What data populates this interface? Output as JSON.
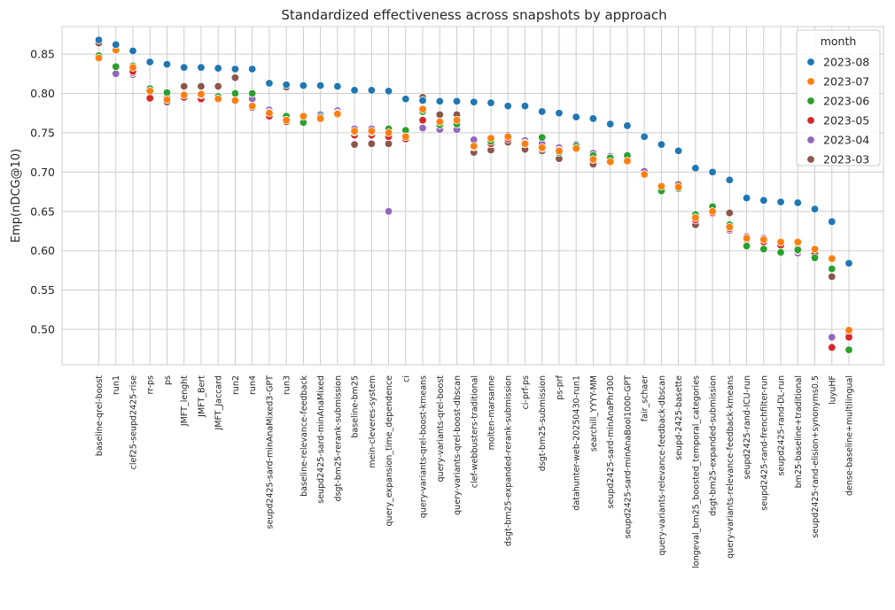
{
  "chart_data": {
    "type": "scatter",
    "title": "Standardized effectiveness across snapshots by approach",
    "xlabel": "",
    "ylabel": "Emp(nDCG@10)",
    "ylim": [
      0.455,
      0.885
    ],
    "yticks": [
      0.5,
      0.55,
      0.6,
      0.65,
      0.7,
      0.75,
      0.8,
      0.85
    ],
    "ytick_labels": [
      "0.50",
      "0.55",
      "0.60",
      "0.65",
      "0.70",
      "0.75",
      "0.80",
      "0.85"
    ],
    "grid": true,
    "legend": {
      "title": "month",
      "position": "top-right"
    },
    "categories": [
      "baseline-qrel-boost",
      "run1",
      "clef25-seupd2425-rise",
      "rr-ps",
      "ps",
      "JMFT_lenght",
      "JMFT_Bert",
      "JMFT_Jaccard",
      "run2",
      "run4",
      "seupd2425-sard-minAnaMixed3-GPT",
      "run3",
      "baseline-relevance-feedback",
      "seupd2425-sard-minAnaMixed",
      "dsgt-bm25-rerank-submission",
      "baseline-bm25",
      "mein-cleveres-system",
      "query_expansion_time_dependence",
      "ci",
      "query-variants-qrel-boost-kmeans",
      "query-variants-qrel-boost",
      "query-variants-qrel-boost-dbscan",
      "clef-webbusters-traditional",
      "molten-marsanne",
      "dsgt-bm25-expanded-rerank-submission",
      "ci-prf-ps",
      "dsgt-bm25-submission",
      "ps-prf",
      "datahunter-web-20250430-run1",
      "searchill_YYYY-MM",
      "seupd2425-sard-minAnaPhr300",
      "seupd2425-sard-minAnaBool1000-GPT",
      "fair_schaer",
      "query-variants-relevance-feedback-dbscan",
      "seupd-2425-basette",
      "longeval_bm25_boosted_temporal_categories",
      "dsgt-bm25-expanded-submission",
      "query-variants-relevance-feedback-kmeans",
      "seupd2425-rand-ICU-run",
      "seupd2425-rand-frenchfilter-run",
      "seupd2425-rand-DL-run",
      "bm25-baseline+traditional",
      "seupd2425-rand-elision+synonyms0.5",
      "luyuHF",
      "dense-baseline+multilingual"
    ],
    "series": [
      {
        "name": "2023-08",
        "color": "#1f77b4",
        "values": [
          0.868,
          0.862,
          0.854,
          0.84,
          0.837,
          0.833,
          0.833,
          0.832,
          0.831,
          0.831,
          0.813,
          0.811,
          0.81,
          0.81,
          0.809,
          0.804,
          0.804,
          0.803,
          0.793,
          0.791,
          0.79,
          0.79,
          0.789,
          0.788,
          0.784,
          0.784,
          0.777,
          0.775,
          0.77,
          0.768,
          0.761,
          0.759,
          0.745,
          0.735,
          0.727,
          0.705,
          0.7,
          0.69,
          0.667,
          0.664,
          0.662,
          0.661,
          0.653,
          0.637,
          0.584
        ]
      },
      {
        "name": "2023-07",
        "color": "#ff7f0e",
        "values": [
          0.845,
          0.855,
          0.833,
          0.803,
          0.792,
          0.798,
          0.799,
          0.793,
          0.791,
          0.784,
          0.775,
          0.766,
          0.771,
          0.768,
          0.774,
          0.752,
          0.752,
          0.75,
          0.745,
          0.78,
          0.764,
          0.766,
          0.733,
          0.743,
          0.745,
          0.736,
          0.731,
          0.727,
          0.73,
          0.716,
          0.713,
          0.714,
          0.697,
          0.682,
          0.681,
          0.642,
          0.65,
          0.63,
          0.616,
          0.614,
          0.611,
          0.611,
          0.602,
          0.59,
          0.499
        ]
      },
      {
        "name": "2023-06",
        "color": "#2ca02c",
        "values": [
          0.848,
          0.834,
          0.835,
          0.806,
          0.801,
          0.798,
          0.798,
          0.796,
          0.8,
          0.8,
          0.776,
          0.771,
          0.763,
          0.77,
          0.775,
          0.751,
          0.751,
          0.755,
          0.753,
          0.777,
          0.76,
          0.761,
          0.732,
          0.739,
          0.745,
          0.737,
          0.744,
          0.725,
          0.733,
          0.721,
          0.718,
          0.721,
          0.697,
          0.676,
          0.679,
          0.646,
          0.656,
          0.633,
          0.606,
          0.602,
          0.598,
          0.601,
          0.591,
          0.577,
          0.474
        ]
      },
      {
        "name": "2023-05",
        "color": "#d62728",
        "values": [
          0.848,
          0.855,
          0.828,
          0.794,
          0.795,
          0.795,
          0.793,
          0.793,
          0.792,
          0.784,
          0.771,
          0.764,
          0.769,
          0.767,
          0.773,
          0.747,
          0.747,
          0.745,
          0.742,
          0.766,
          0.763,
          0.763,
          0.732,
          0.736,
          0.742,
          0.736,
          0.73,
          0.728,
          0.732,
          0.716,
          0.714,
          0.717,
          0.696,
          0.68,
          0.68,
          0.639,
          0.648,
          0.628,
          0.614,
          0.611,
          0.607,
          0.6,
          0.596,
          0.477,
          0.49
        ]
      },
      {
        "name": "2023-04",
        "color": "#9467bd",
        "values": [
          0.848,
          0.825,
          0.826,
          0.802,
          0.802,
          0.796,
          0.799,
          0.797,
          0.793,
          0.793,
          0.779,
          0.764,
          0.769,
          0.773,
          0.778,
          0.755,
          0.755,
          0.65,
          0.75,
          0.756,
          0.754,
          0.754,
          0.741,
          0.738,
          0.747,
          0.74,
          0.736,
          0.731,
          0.735,
          0.724,
          0.72,
          0.718,
          0.701,
          0.681,
          0.68,
          0.644,
          0.652,
          0.626,
          0.618,
          0.616,
          0.608,
          0.597,
          0.594,
          0.49,
          0.49
        ]
      },
      {
        "name": "2023-03",
        "color": "#8c564b",
        "values": [
          0.864,
          0.856,
          0.824,
          0.793,
          0.789,
          0.809,
          0.809,
          0.809,
          0.82,
          0.782,
          0.771,
          0.808,
          0.769,
          0.767,
          0.773,
          0.735,
          0.736,
          0.736,
          0.742,
          0.795,
          0.773,
          0.773,
          0.725,
          0.728,
          0.738,
          0.729,
          0.727,
          0.717,
          0.729,
          0.71,
          0.716,
          0.717,
          0.695,
          0.678,
          0.684,
          0.633,
          0.647,
          0.648,
          0.616,
          0.613,
          0.61,
          0.603,
          0.6,
          0.567,
          0.493
        ]
      }
    ]
  }
}
